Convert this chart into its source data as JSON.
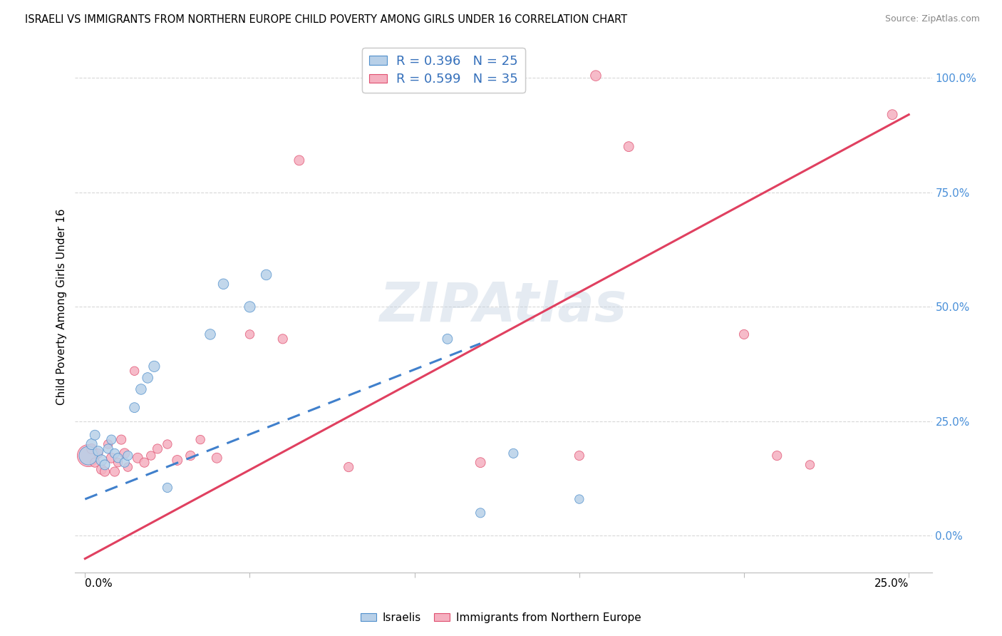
{
  "title": "ISRAELI VS IMMIGRANTS FROM NORTHERN EUROPE CHILD POVERTY AMONG GIRLS UNDER 16 CORRELATION CHART",
  "source": "Source: ZipAtlas.com",
  "ylabel": "Child Poverty Among Girls Under 16",
  "right_yticks": [
    0.0,
    0.25,
    0.5,
    0.75,
    1.0
  ],
  "right_yticklabels": [
    "0.0%",
    "25.0%",
    "50.0%",
    "75.0%",
    "100.0%"
  ],
  "xlim": [
    -0.003,
    0.257
  ],
  "ylim": [
    -0.08,
    1.08
  ],
  "watermark": "ZIPAtlas",
  "legend_r1": "R = 0.396   N = 25",
  "legend_r2": "R = 0.599   N = 35",
  "israeli_face_color": "#b8d0e8",
  "israeli_edge_color": "#5090cc",
  "immigrant_face_color": "#f5b0c0",
  "immigrant_edge_color": "#e05070",
  "israeli_line_color": "#4080cc",
  "immigrant_line_color": "#e04060",
  "isr_trend_x0": 0.0,
  "isr_trend_y0": 0.08,
  "isr_trend_x1": 0.12,
  "isr_trend_y1": 0.42,
  "imm_trend_x0": 0.0,
  "imm_trend_y0": -0.05,
  "imm_trend_x1": 0.25,
  "imm_trend_y1": 0.92,
  "israeli_x": [
    0.001,
    0.002,
    0.003,
    0.004,
    0.005,
    0.006,
    0.007,
    0.008,
    0.009,
    0.01,
    0.012,
    0.013,
    0.015,
    0.017,
    0.019,
    0.021,
    0.025,
    0.038,
    0.042,
    0.05,
    0.055,
    0.11,
    0.12,
    0.13,
    0.15
  ],
  "israeli_y": [
    0.175,
    0.2,
    0.22,
    0.185,
    0.165,
    0.155,
    0.19,
    0.21,
    0.18,
    0.17,
    0.16,
    0.175,
    0.28,
    0.32,
    0.345,
    0.37,
    0.105,
    0.44,
    0.55,
    0.5,
    0.57,
    0.43,
    0.05,
    0.18,
    0.08
  ],
  "israeli_s": [
    350,
    120,
    100,
    100,
    120,
    100,
    90,
    90,
    90,
    90,
    90,
    90,
    100,
    110,
    110,
    120,
    90,
    110,
    110,
    120,
    110,
    100,
    90,
    90,
    80
  ],
  "immigrant_x": [
    0.001,
    0.002,
    0.003,
    0.004,
    0.005,
    0.006,
    0.007,
    0.008,
    0.009,
    0.01,
    0.011,
    0.012,
    0.013,
    0.015,
    0.016,
    0.018,
    0.02,
    0.022,
    0.025,
    0.028,
    0.032,
    0.035,
    0.04,
    0.05,
    0.06,
    0.065,
    0.08,
    0.12,
    0.15,
    0.155,
    0.165,
    0.2,
    0.21,
    0.22,
    0.245
  ],
  "immigrant_y": [
    0.175,
    0.19,
    0.16,
    0.18,
    0.145,
    0.14,
    0.2,
    0.17,
    0.14,
    0.16,
    0.21,
    0.18,
    0.15,
    0.36,
    0.17,
    0.16,
    0.175,
    0.19,
    0.2,
    0.165,
    0.175,
    0.21,
    0.17,
    0.44,
    0.43,
    0.82,
    0.15,
    0.16,
    0.175,
    1.005,
    0.85,
    0.44,
    0.175,
    0.155,
    0.92
  ],
  "immigrant_s": [
    500,
    100,
    90,
    80,
    100,
    90,
    80,
    100,
    90,
    80,
    90,
    100,
    80,
    80,
    100,
    90,
    80,
    90,
    80,
    100,
    90,
    80,
    100,
    80,
    90,
    100,
    90,
    100,
    90,
    110,
    100,
    90,
    90,
    80,
    100
  ]
}
